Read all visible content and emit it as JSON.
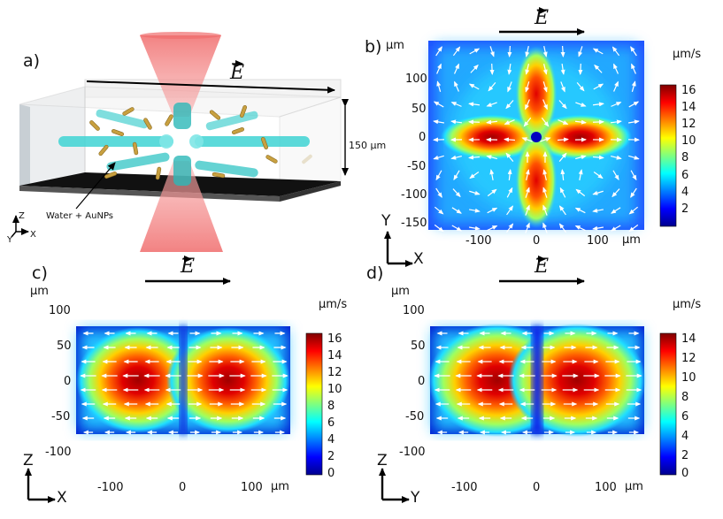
{
  "panels": {
    "a": {
      "label": "a)",
      "efield": "E",
      "height_label": "150 µm",
      "callout": "Water + AuNPs",
      "axes": {
        "z": "Z",
        "y": "Y",
        "x": "X"
      }
    },
    "b": {
      "label": "b)",
      "unit_axis": "µm",
      "unit_axis_x": "µm",
      "efield": "E",
      "colorbar_unit": "µm/s",
      "y_ticks": [
        "100",
        "50",
        "0",
        "-50",
        "-100",
        "-150"
      ],
      "x_ticks": [
        "-100",
        "0",
        "100"
      ],
      "colorbar_ticks": [
        "16",
        "14",
        "12",
        "10",
        "8",
        "6",
        "4",
        "2"
      ],
      "axes": {
        "vertical": "Y",
        "horizontal": "X"
      }
    },
    "c": {
      "label": "c)",
      "unit_axis": "µm",
      "unit_axis_x": "µm",
      "efield": "E",
      "colorbar_unit": "µm/s",
      "y_ticks": [
        "100",
        "50",
        "0",
        "-50",
        "-100"
      ],
      "x_ticks": [
        "-100",
        "0",
        "100"
      ],
      "colorbar_ticks": [
        "16",
        "14",
        "12",
        "10",
        "8",
        "6",
        "4",
        "2",
        "0"
      ],
      "axes": {
        "vertical": "Z",
        "horizontal": "X"
      }
    },
    "d": {
      "label": "d)",
      "unit_axis": "µm",
      "unit_axis_x": "µm",
      "efield": "E",
      "colorbar_unit": "µm/s",
      "y_ticks": [
        "100",
        "50",
        "0",
        "-50",
        "-100"
      ],
      "x_ticks": [
        "-100",
        "0",
        "100"
      ],
      "colorbar_ticks": [
        "14",
        "12",
        "10",
        "8",
        "6",
        "4",
        "2",
        "0"
      ],
      "axes": {
        "vertical": "Z",
        "horizontal": "Y"
      }
    }
  },
  "colors": {
    "jet_low": "#00008f",
    "jet_high": "#800000",
    "laser": "#f08080"
  }
}
